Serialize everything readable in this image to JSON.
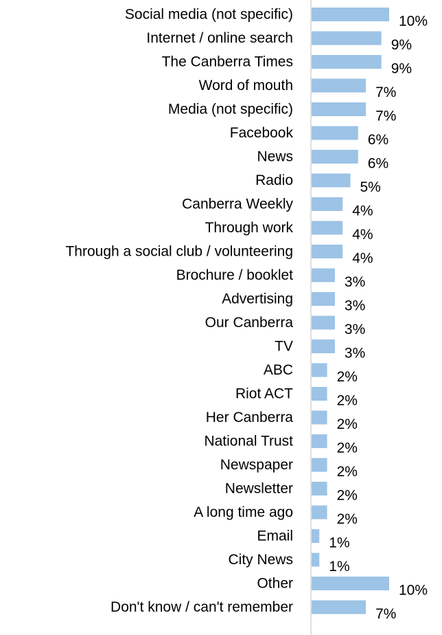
{
  "chart_data": {
    "type": "bar",
    "orientation": "horizontal",
    "categories": [
      "Social media (not specific)",
      "Internet / online search",
      "The Canberra Times",
      "Word of mouth",
      "Media (not specific)",
      "Facebook",
      "News",
      "Radio",
      "Canberra Weekly",
      "Through work",
      "Through a social club / volunteering",
      "Brochure / booklet",
      "Advertising",
      "Our Canberra",
      "TV",
      "ABC",
      "Riot ACT",
      "Her Canberra",
      "National Trust",
      "Newspaper",
      "Newsletter",
      "A long time ago",
      "Email",
      "City News",
      "Other",
      "Don't know / can't remember"
    ],
    "values": [
      10,
      9,
      9,
      7,
      7,
      6,
      6,
      5,
      4,
      4,
      4,
      3,
      3,
      3,
      3,
      2,
      2,
      2,
      2,
      2,
      2,
      2,
      1,
      1,
      10,
      7
    ],
    "value_labels": [
      "10%",
      "9%",
      "9%",
      "7%",
      "7%",
      "6%",
      "6%",
      "5%",
      "4%",
      "4%",
      "4%",
      "3%",
      "3%",
      "3%",
      "3%",
      "2%",
      "2%",
      "2%",
      "2%",
      "2%",
      "2%",
      "2%",
      "1%",
      "1%",
      "10%",
      "7%"
    ],
    "unit": "%",
    "title": "",
    "xlabel": "",
    "ylabel": "",
    "xlim": [
      0,
      11
    ],
    "grid": false,
    "legend": "none",
    "bar_color": "#9DC3E6",
    "axis_color": "#BFBFBF"
  }
}
